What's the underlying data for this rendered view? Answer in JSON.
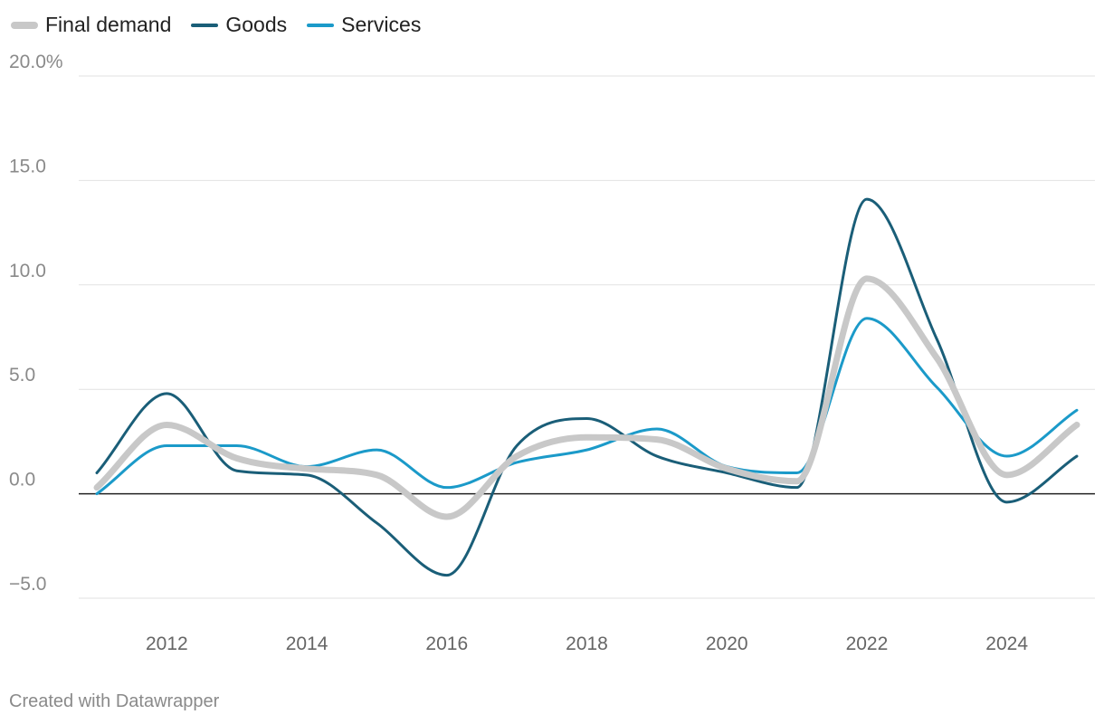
{
  "chart_data": {
    "type": "line",
    "title": "",
    "xlabel": "",
    "ylabel": "",
    "x": [
      2011,
      2012,
      2013,
      2014,
      2015,
      2016,
      2017,
      2018,
      2019,
      2020,
      2021,
      2022,
      2023,
      2024,
      2025
    ],
    "series": [
      {
        "name": "Final demand",
        "color": "#c8c8c8",
        "values": [
          0.3,
          3.3,
          1.7,
          1.2,
          0.9,
          -1.1,
          1.8,
          2.7,
          2.6,
          1.2,
          0.6,
          10.3,
          6.5,
          0.9,
          3.3
        ]
      },
      {
        "name": "Goods",
        "color": "#1a5e78",
        "values": [
          1.0,
          4.8,
          1.1,
          0.9,
          -1.4,
          -3.9,
          2.3,
          3.6,
          1.8,
          1.0,
          0.3,
          14.1,
          7.4,
          -0.4,
          1.8
        ]
      },
      {
        "name": "Services",
        "color": "#1b9ac9",
        "values": [
          0.0,
          2.3,
          2.3,
          1.3,
          2.1,
          0.3,
          1.5,
          2.1,
          3.1,
          1.3,
          1.0,
          8.4,
          5.1,
          1.8,
          4.0
        ]
      }
    ],
    "ylim": [
      -5,
      20
    ],
    "yticks": [
      -5,
      0,
      5,
      10,
      15,
      20
    ],
    "ytick_labels": [
      "−5.0",
      "0.0",
      "5.0",
      "10.0",
      "15.0",
      "20.0%"
    ],
    "xticks": [
      2012,
      2014,
      2016,
      2018,
      2020,
      2022,
      2024
    ],
    "xtick_labels": [
      "2012",
      "2014",
      "2016",
      "2018",
      "2020",
      "2022",
      "2024"
    ],
    "grid": true,
    "legend": "top-left"
  },
  "footer": "Created with Datawrapper"
}
